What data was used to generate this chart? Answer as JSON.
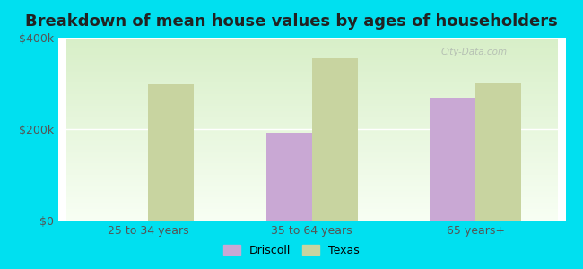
{
  "title": "Breakdown of mean house values by ages of householders",
  "categories": [
    "25 to 34 years",
    "35 to 64 years",
    "65 years+"
  ],
  "driscoll_values": [
    0,
    192000,
    268000
  ],
  "texas_values": [
    298000,
    355000,
    300000
  ],
  "driscoll_color": "#c9a8d4",
  "texas_color": "#c8d4a0",
  "background_color": "#00e0f0",
  "plot_bg_top": "#d8efc8",
  "plot_bg_bottom": "#f8fff4",
  "ylim": [
    0,
    400000
  ],
  "yticks": [
    0,
    200000,
    400000
  ],
  "ytick_labels": [
    "$0",
    "$200k",
    "$400k"
  ],
  "legend_labels": [
    "Driscoll",
    "Texas"
  ],
  "title_fontsize": 13,
  "axis_label_fontsize": 9,
  "legend_fontsize": 9,
  "bar_width": 0.28,
  "watermark": "City-Data.com"
}
